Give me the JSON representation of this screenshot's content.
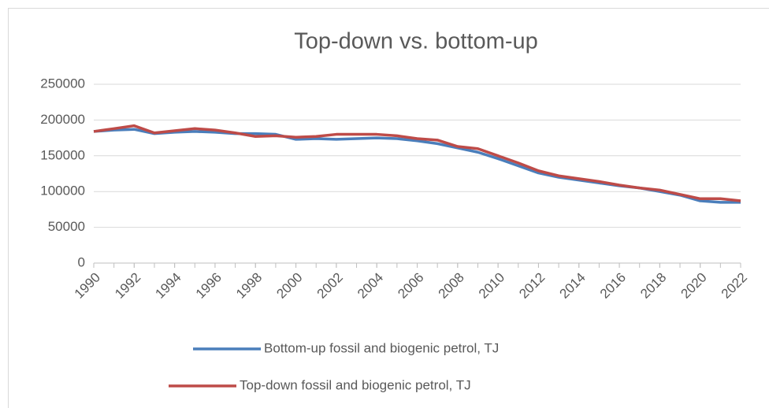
{
  "chart_data": {
    "type": "line",
    "title": "Top-down vs. bottom-up",
    "x": [
      1990,
      1991,
      1992,
      1993,
      1994,
      1995,
      1996,
      1997,
      1998,
      1999,
      2000,
      2001,
      2002,
      2003,
      2004,
      2005,
      2006,
      2007,
      2008,
      2009,
      2010,
      2011,
      2012,
      2013,
      2014,
      2015,
      2016,
      2017,
      2018,
      2019,
      2020,
      2021,
      2022
    ],
    "series": [
      {
        "name": "Bottom-up fossil and biogenic petrol, TJ",
        "color": "#4a7ebb",
        "values": [
          184000,
          186000,
          187000,
          181000,
          183000,
          184000,
          183000,
          181000,
          181000,
          180000,
          173000,
          174000,
          173000,
          174000,
          175000,
          174000,
          171000,
          167000,
          161000,
          155000,
          146000,
          136000,
          126000,
          120000,
          116000,
          112000,
          108000,
          105000,
          100000,
          95000,
          87000,
          85000,
          85000
        ]
      },
      {
        "name": "Top-down fossil and biogenic petrol, TJ",
        "color": "#be4b48",
        "values": [
          184000,
          188000,
          192000,
          182000,
          185000,
          188000,
          186000,
          182000,
          177000,
          178000,
          176000,
          177000,
          180000,
          180000,
          180000,
          178000,
          174000,
          172000,
          163000,
          160000,
          150000,
          140000,
          129000,
          122000,
          118000,
          114000,
          109000,
          105000,
          102000,
          96000,
          90000,
          90000,
          87000
        ]
      }
    ],
    "xlim": [
      1990,
      2022
    ],
    "xticks": [
      1990,
      1992,
      1994,
      1996,
      1998,
      2000,
      2002,
      2004,
      2006,
      2008,
      2010,
      2012,
      2014,
      2016,
      2018,
      2020,
      2022
    ],
    "ylim": [
      0,
      250000
    ],
    "yticks": [
      0,
      50000,
      100000,
      150000,
      200000,
      250000
    ],
    "grid": true,
    "legend": "bottom"
  }
}
